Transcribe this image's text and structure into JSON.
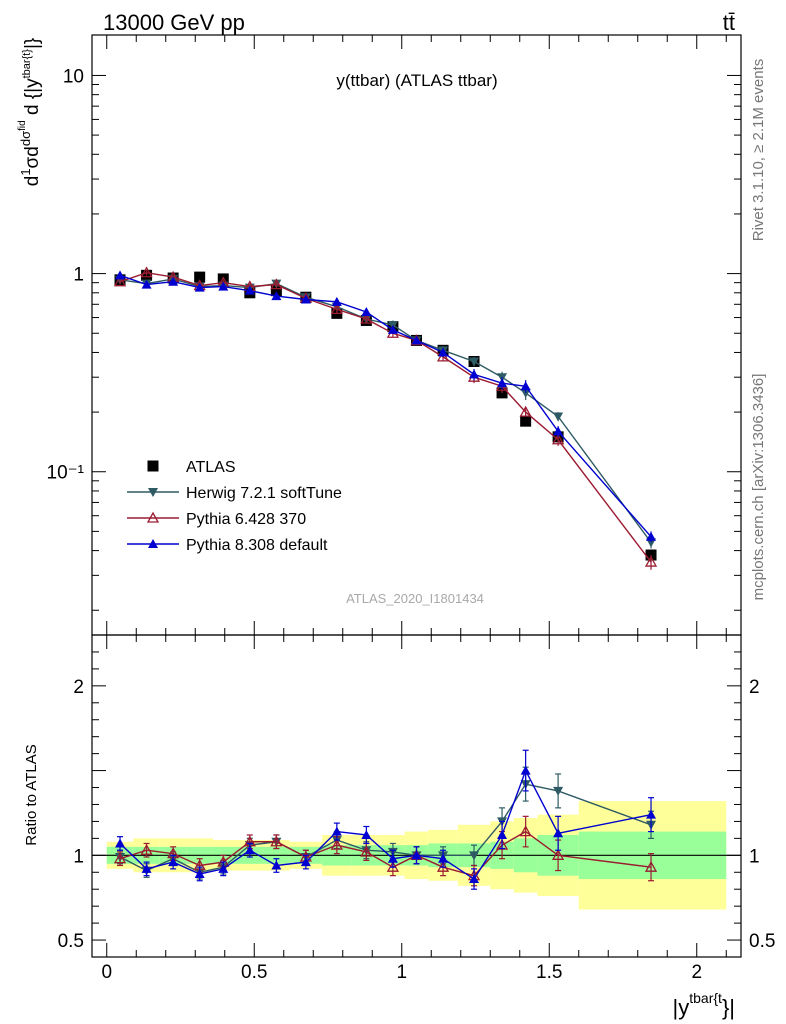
{
  "header": {
    "left": "13000 GeV pp",
    "right": "tt̄"
  },
  "side_labels": {
    "rivet": "Rivet 3.1.10, ≥ 2.1M events",
    "mcplots": "mcplots.cern.ch [arXiv:1306.3436]"
  },
  "chart_data": {
    "type": "scatter",
    "title": "y(ttbar) (ATLAS ttbar)",
    "analysis_id": "ATLAS_2020_I1801434",
    "xlabel": "|ytbar{t}|",
    "ylabel": "dσ/d{|ytbar{t}|} · 1/σ",
    "ratio_ylabel": "Ratio to ATLAS",
    "xlim": [
      -0.05,
      2.15
    ],
    "ylim": [
      0.015,
      16
    ],
    "ylog": true,
    "ratio_ylim": [
      0.4,
      2.3
    ],
    "x_ticks": [
      "0",
      "0.5",
      "1",
      "1.5",
      "2"
    ],
    "y_ticks": [
      "10",
      "1",
      "10⁻¹"
    ],
    "ratio_ticks": [
      "0.5",
      "1",
      "2"
    ],
    "legend_position": "lower-left",
    "x": [
      0.045,
      0.135,
      0.225,
      0.315,
      0.395,
      0.485,
      0.575,
      0.675,
      0.78,
      0.88,
      0.97,
      1.05,
      1.14,
      1.245,
      1.34,
      1.42,
      1.53,
      1.845
    ],
    "x_edges": [
      0.0,
      0.09,
      0.18,
      0.27,
      0.36,
      0.44,
      0.53,
      0.62,
      0.73,
      0.83,
      0.93,
      1.01,
      1.09,
      1.19,
      1.3,
      1.38,
      1.46,
      1.6,
      2.1
    ],
    "series": [
      {
        "name": "ATLAS",
        "marker": "square",
        "color": "#000000",
        "values": [
          0.93,
          0.98,
          0.95,
          0.96,
          0.94,
          0.8,
          0.82,
          0.76,
          0.63,
          0.58,
          0.54,
          0.46,
          0.41,
          0.36,
          0.25,
          0.18,
          0.15,
          0.038
        ],
        "band_green": [
          0.05,
          0.05,
          0.05,
          0.05,
          0.05,
          0.05,
          0.05,
          0.05,
          0.06,
          0.06,
          0.06,
          0.06,
          0.07,
          0.07,
          0.08,
          0.1,
          0.12,
          0.14
        ],
        "band_yellow": [
          0.08,
          0.1,
          0.1,
          0.1,
          0.09,
          0.09,
          0.09,
          0.08,
          0.12,
          0.12,
          0.12,
          0.14,
          0.15,
          0.18,
          0.2,
          0.22,
          0.24,
          0.32
        ]
      },
      {
        "name": "Herwig 7.2.1 softTune",
        "marker": "triangle-down",
        "color": "#2e5b63",
        "values": [
          0.93,
          0.89,
          0.94,
          0.86,
          0.87,
          0.85,
          0.89,
          0.76,
          0.68,
          0.59,
          0.55,
          0.46,
          0.41,
          0.36,
          0.3,
          0.25,
          0.19,
          0.044
        ],
        "errors": [
          0.03,
          0.03,
          0.03,
          0.03,
          0.03,
          0.03,
          0.03,
          0.03,
          0.03,
          0.03,
          0.03,
          0.02,
          0.02,
          0.02,
          0.02,
          0.02,
          0.01,
          0.003
        ],
        "ratio": [
          0.99,
          0.91,
          0.98,
          0.9,
          0.93,
          1.06,
          1.08,
          0.99,
          1.09,
          1.03,
          1.02,
          1.0,
          1.0,
          1.0,
          1.2,
          1.42,
          1.38,
          1.18
        ],
        "ratio_errors": [
          0.04,
          0.04,
          0.04,
          0.04,
          0.04,
          0.04,
          0.04,
          0.04,
          0.05,
          0.05,
          0.05,
          0.05,
          0.05,
          0.06,
          0.08,
          0.1,
          0.1,
          0.08
        ]
      },
      {
        "name": "Pythia 6.428 370",
        "marker": "triangle-up-open",
        "color": "#9b1b30",
        "values": [
          0.91,
          1.01,
          0.96,
          0.87,
          0.9,
          0.86,
          0.88,
          0.75,
          0.66,
          0.59,
          0.5,
          0.46,
          0.38,
          0.3,
          0.27,
          0.2,
          0.145,
          0.035
        ],
        "errors": [
          0.03,
          0.03,
          0.03,
          0.03,
          0.03,
          0.03,
          0.03,
          0.03,
          0.03,
          0.03,
          0.02,
          0.02,
          0.02,
          0.02,
          0.02,
          0.01,
          0.01,
          0.003
        ],
        "ratio": [
          0.98,
          1.03,
          1.01,
          0.94,
          0.96,
          1.08,
          1.08,
          0.99,
          1.06,
          1.02,
          0.93,
          1.0,
          0.93,
          0.88,
          1.06,
          1.14,
          1.0,
          0.93
        ],
        "ratio_errors": [
          0.04,
          0.04,
          0.04,
          0.04,
          0.04,
          0.04,
          0.04,
          0.04,
          0.05,
          0.05,
          0.05,
          0.05,
          0.05,
          0.06,
          0.08,
          0.09,
          0.09,
          0.08
        ]
      },
      {
        "name": "Pythia 8.308 default",
        "marker": "triangle-up",
        "color": "#0000d0",
        "values": [
          0.98,
          0.88,
          0.91,
          0.85,
          0.86,
          0.82,
          0.77,
          0.74,
          0.72,
          0.64,
          0.52,
          0.46,
          0.4,
          0.31,
          0.28,
          0.27,
          0.16,
          0.047
        ],
        "errors": [
          0.03,
          0.03,
          0.03,
          0.03,
          0.03,
          0.03,
          0.03,
          0.03,
          0.03,
          0.03,
          0.02,
          0.02,
          0.02,
          0.02,
          0.02,
          0.02,
          0.01,
          0.003
        ],
        "ratio": [
          1.07,
          0.92,
          0.96,
          0.89,
          0.92,
          1.03,
          0.94,
          0.96,
          1.14,
          1.12,
          0.98,
          1.0,
          0.98,
          0.86,
          1.12,
          1.5,
          1.13,
          1.24
        ],
        "ratio_errors": [
          0.04,
          0.04,
          0.04,
          0.04,
          0.04,
          0.04,
          0.04,
          0.04,
          0.05,
          0.05,
          0.05,
          0.05,
          0.05,
          0.06,
          0.08,
          0.12,
          0.1,
          0.1
        ]
      }
    ]
  }
}
